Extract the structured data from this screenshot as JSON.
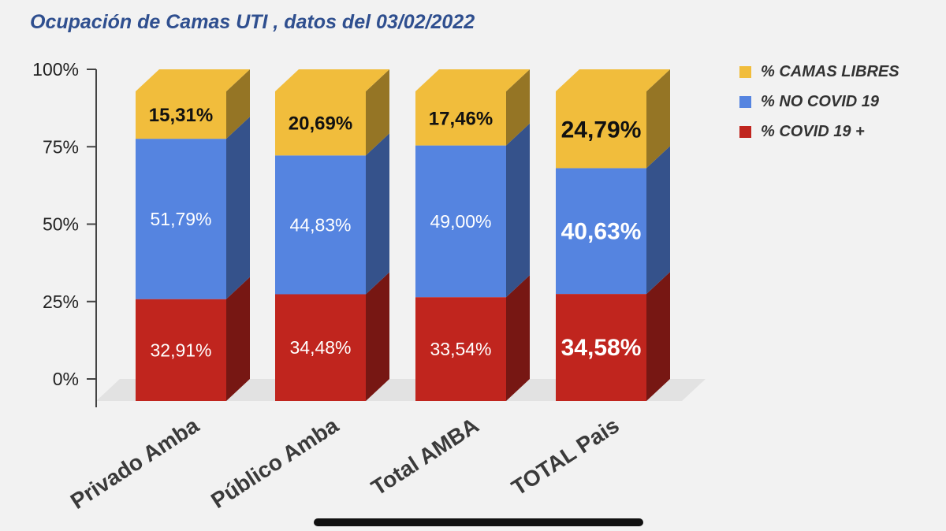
{
  "title": "Ocupación de Camas UTI , datos del 03/02/2022",
  "legend": [
    {
      "label": "% CAMAS LIBRES",
      "color": "#f1bd3c"
    },
    {
      "label": "% NO COVID 19",
      "color": "#5584e0"
    },
    {
      "label": "% COVID 19 +",
      "color": "#c0251e"
    }
  ],
  "chart_data": {
    "type": "bar",
    "stacked": true,
    "style": "3d",
    "categories": [
      "Privado Amba",
      "Público Amba",
      "Total AMBA",
      "TOTAL Pais"
    ],
    "series": [
      {
        "name": "% COVID 19 +",
        "color": "#c0251e",
        "values": [
          32.91,
          34.48,
          33.54,
          34.58
        ],
        "labels": [
          "32,91%",
          "34,48%",
          "33,54%",
          "34,58%"
        ]
      },
      {
        "name": "% NO COVID 19",
        "color": "#5584e0",
        "values": [
          51.79,
          44.83,
          49.0,
          40.63
        ],
        "labels": [
          "51,79%",
          "44,83%",
          "49,00%",
          "40,63%"
        ]
      },
      {
        "name": "% CAMAS LIBRES",
        "color": "#f1bd3c",
        "values": [
          15.31,
          20.69,
          17.46,
          24.79
        ],
        "labels": [
          "15,31%",
          "20,69%",
          "17,46%",
          "24,79%"
        ]
      }
    ],
    "y_ticks": [
      "0%",
      "25%",
      "50%",
      "75%",
      "100%"
    ],
    "ylim": [
      0,
      100
    ],
    "grid": false,
    "legend_position": "right"
  }
}
